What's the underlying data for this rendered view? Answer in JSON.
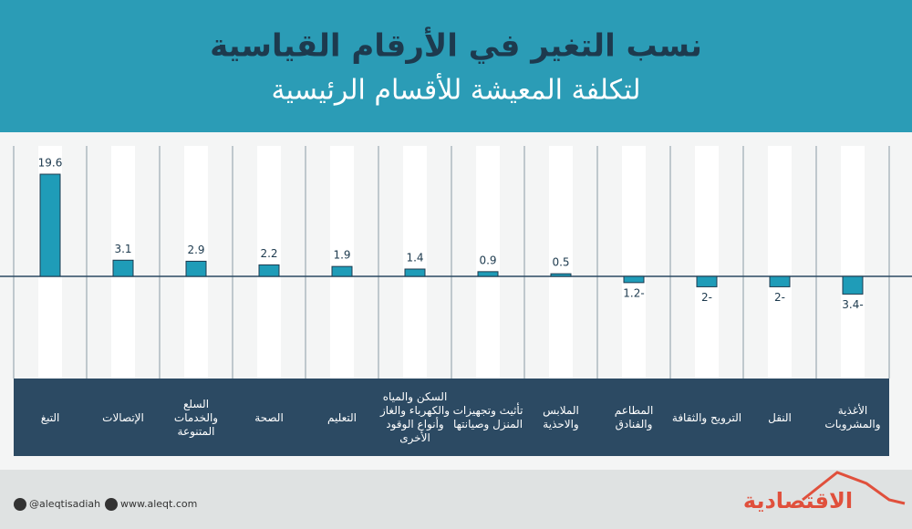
{
  "chart_data": {
    "type": "bar",
    "title": "نسب التغير في الأرقام القياسية",
    "subtitle": "لتكلفة المعيشة للأقسام الرئيسية",
    "categories": [
      "الأغذية والمشروبات",
      "النقل",
      "الترويح والثقافة",
      "المطاعم والفنادق",
      "الملابس والاحذية",
      "تأثيث وتجهيزات المنزل وصيانتها",
      "السكن والمياه والكهرباء والغاز وأنواع الوقود الأخرى",
      "التعليم",
      "الصحة",
      "السلع والخدمات المتنوعة",
      "الإتصالات",
      "التبغ"
    ],
    "values": [
      -3.4,
      -2,
      -2,
      -1.2,
      0.5,
      0.9,
      1.4,
      1.9,
      2.2,
      2.9,
      3.1,
      19.6
    ],
    "value_labels": [
      "3.4-",
      "2-",
      "2-",
      "1.2-",
      "0.5",
      "0.9",
      "1.4",
      "1.9",
      "2.2",
      "2.9",
      "3.1",
      "19.6"
    ],
    "color": "#1f9cb8"
  },
  "footer": {
    "twitter": "@aleqtisadiah",
    "website": "www.aleqt.com",
    "brand": "الاقتصادية"
  }
}
